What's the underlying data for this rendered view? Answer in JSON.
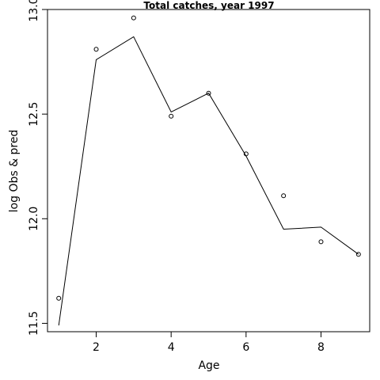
{
  "chart_data": {
    "type": "line",
    "title": "Total catches, year 1997",
    "xlabel": "Age",
    "ylabel": "log Obs & pred",
    "xlim": [
      0.7,
      9.3
    ],
    "ylim": [
      11.46,
      13.0
    ],
    "x_ticks": [
      2,
      4,
      6,
      8
    ],
    "y_ticks": [
      11.5,
      12.0,
      12.5,
      13.0
    ],
    "x_tick_labels": [
      "2",
      "4",
      "6",
      "8"
    ],
    "y_tick_labels": [
      "11.5",
      "12.0",
      "12.5",
      "13.0"
    ],
    "grid": false,
    "series": [
      {
        "kind": "points",
        "x": [
          1,
          2,
          3,
          4,
          5,
          6,
          7,
          8,
          9
        ],
        "y": [
          11.62,
          12.81,
          12.96,
          12.49,
          12.6,
          12.31,
          12.11,
          11.89,
          11.83
        ]
      },
      {
        "kind": "line",
        "x": [
          1,
          2,
          3,
          4,
          5,
          6,
          7,
          8,
          9
        ],
        "y": [
          11.49,
          12.76,
          12.87,
          12.51,
          12.6,
          12.3,
          11.95,
          11.96,
          11.83
        ]
      }
    ]
  }
}
